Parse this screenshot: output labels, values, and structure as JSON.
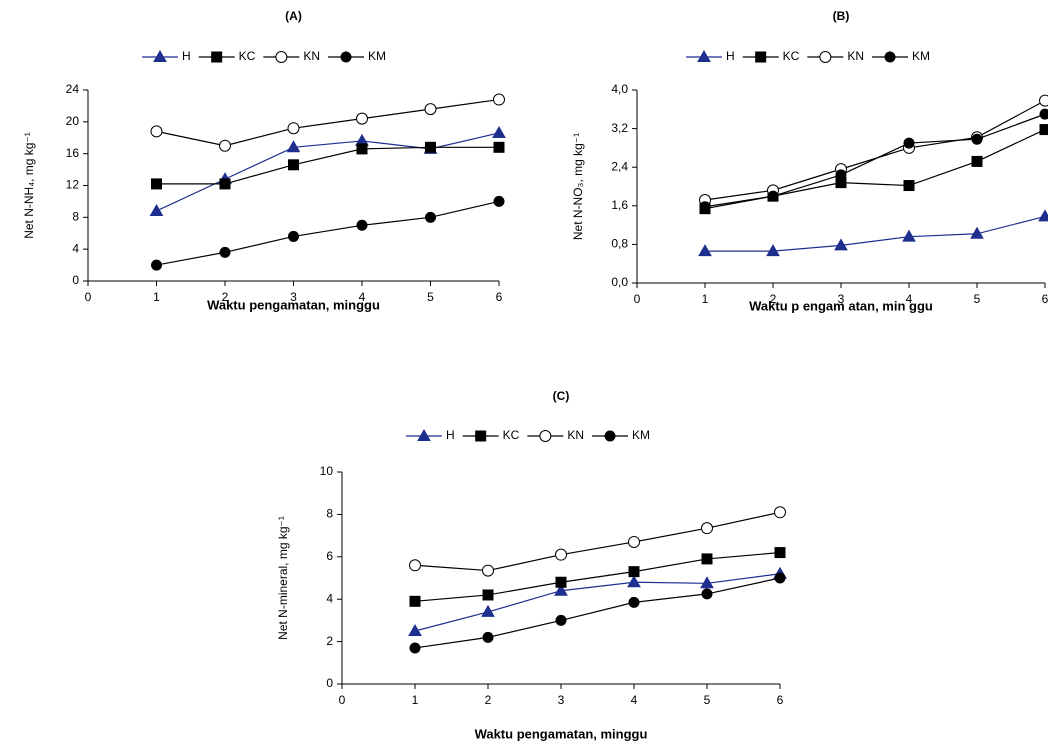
{
  "chart_data": [
    {
      "type": "line",
      "title": "(A)",
      "x_label": "Waktu pengamatan, minggu",
      "y_label": "Net N-NH₄, mg kg⁻¹",
      "x": [
        1,
        2,
        3,
        4,
        5,
        6
      ],
      "xlim": [
        0,
        6
      ],
      "xticks": [
        0,
        1,
        2,
        3,
        4,
        5,
        6
      ],
      "ylim": [
        0,
        24
      ],
      "yticks": [
        0,
        4,
        8,
        12,
        16,
        20,
        24
      ],
      "grid": false,
      "legend": "top",
      "series": [
        {
          "name": "H",
          "color": "#1f2f8f",
          "marker": "triangle",
          "values": [
            8.8,
            12.8,
            16.8,
            17.6,
            16.6,
            18.6
          ]
        },
        {
          "name": "KC",
          "color": "#000000",
          "marker": "square",
          "values": [
            12.2,
            12.2,
            14.6,
            16.6,
            16.8,
            16.8
          ]
        },
        {
          "name": "KN",
          "color": "#000000",
          "marker": "open-circle",
          "values": [
            18.8,
            17.0,
            19.2,
            20.4,
            21.6,
            22.8
          ]
        },
        {
          "name": "KM",
          "color": "#000000",
          "marker": "circle",
          "values": [
            2.0,
            3.6,
            5.6,
            7.0,
            8.0,
            10.0
          ]
        }
      ]
    },
    {
      "type": "line",
      "title": "(B)",
      "x_label": "Waktu p engam atan, min ggu",
      "y_label": "Net N-NO₃, mg kg⁻¹",
      "x": [
        1,
        2,
        3,
        4,
        5,
        6
      ],
      "xlim": [
        0,
        6
      ],
      "xticks": [
        0,
        1,
        2,
        3,
        4,
        5,
        6
      ],
      "ylim": [
        0,
        4
      ],
      "yticks": [
        {
          "value": 0,
          "label": "0,0"
        },
        {
          "value": 0.8,
          "label": "0,8"
        },
        {
          "value": 1.6,
          "label": "1,6"
        },
        {
          "value": 2.4,
          "label": "2,4"
        },
        {
          "value": 3.2,
          "label": "3,2"
        },
        {
          "value": 4,
          "label": "4,0"
        }
      ],
      "grid": false,
      "legend": "top",
      "series": [
        {
          "name": "H",
          "color": "#1f2f8f",
          "marker": "triangle",
          "values": [
            0.66,
            0.66,
            0.78,
            0.96,
            1.02,
            1.38
          ]
        },
        {
          "name": "KC",
          "color": "#000000",
          "marker": "square",
          "values": [
            1.54,
            1.8,
            2.08,
            2.02,
            2.52,
            3.18
          ]
        },
        {
          "name": "KN",
          "color": "#000000",
          "marker": "open-circle",
          "values": [
            1.72,
            1.92,
            2.36,
            2.8,
            3.02,
            3.78
          ]
        },
        {
          "name": "KM",
          "color": "#000000",
          "marker": "circle",
          "values": [
            1.58,
            1.8,
            2.24,
            2.9,
            2.98,
            3.5
          ]
        }
      ]
    },
    {
      "type": "line",
      "title": "(C)",
      "x_label": "Waktu pengamatan, minggu",
      "y_label": "Net N-mineral, mg kg⁻¹",
      "x": [
        1,
        2,
        3,
        4,
        5,
        6
      ],
      "xlim": [
        0,
        6
      ],
      "xticks": [
        0,
        1,
        2,
        3,
        4,
        5,
        6
      ],
      "ylim": [
        0,
        10
      ],
      "yticks": [
        0,
        2,
        4,
        6,
        8,
        10
      ],
      "grid": false,
      "legend": "top",
      "series": [
        {
          "name": "H",
          "color": "#1f2f8f",
          "marker": "triangle",
          "values": [
            2.5,
            3.4,
            4.4,
            4.8,
            4.75,
            5.2
          ]
        },
        {
          "name": "KC",
          "color": "#000000",
          "marker": "square",
          "values": [
            3.9,
            4.2,
            4.8,
            5.3,
            5.9,
            6.2
          ]
        },
        {
          "name": "KN",
          "color": "#000000",
          "marker": "open-circle",
          "values": [
            5.6,
            5.35,
            6.1,
            6.7,
            7.35,
            8.1
          ]
        },
        {
          "name": "KM",
          "color": "#000000",
          "marker": "circle",
          "values": [
            1.7,
            2.2,
            3.0,
            3.85,
            4.25,
            5.0
          ]
        }
      ]
    }
  ]
}
